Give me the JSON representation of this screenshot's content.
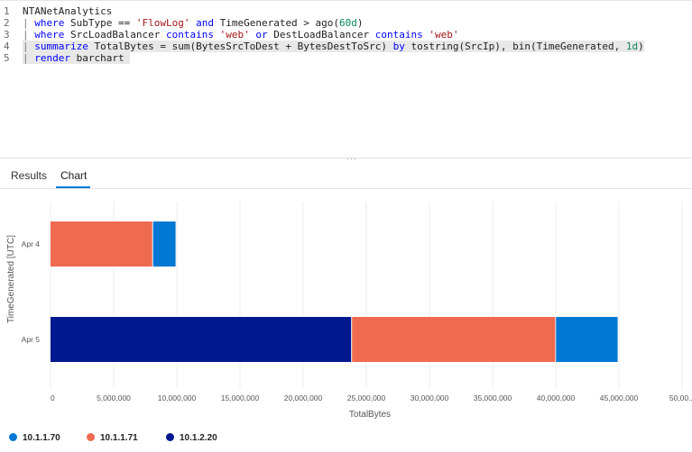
{
  "editor": {
    "lines": [
      {
        "num": "1",
        "tokens": [
          {
            "t": "NTANetAnalytics",
            "c": "plain"
          }
        ]
      },
      {
        "num": "2",
        "tokens": [
          {
            "t": "| ",
            "c": "pipe"
          },
          {
            "t": "where",
            "c": "kw"
          },
          {
            "t": " SubType == ",
            "c": "plain"
          },
          {
            "t": "'FlowLog'",
            "c": "str"
          },
          {
            "t": " ",
            "c": "plain"
          },
          {
            "t": "and",
            "c": "kw"
          },
          {
            "t": " TimeGenerated > ago(",
            "c": "plain"
          },
          {
            "t": "60d",
            "c": "num"
          },
          {
            "t": ")",
            "c": "plain"
          }
        ]
      },
      {
        "num": "3",
        "tokens": [
          {
            "t": "| ",
            "c": "pipe"
          },
          {
            "t": "where",
            "c": "kw"
          },
          {
            "t": " SrcLoadBalancer ",
            "c": "plain"
          },
          {
            "t": "contains",
            "c": "kw"
          },
          {
            "t": " ",
            "c": "plain"
          },
          {
            "t": "'web'",
            "c": "str"
          },
          {
            "t": " ",
            "c": "plain"
          },
          {
            "t": "or",
            "c": "kw"
          },
          {
            "t": " DestLoadBalancer ",
            "c": "plain"
          },
          {
            "t": "contains",
            "c": "kw"
          },
          {
            "t": " ",
            "c": "plain"
          },
          {
            "t": "'web'",
            "c": "str"
          }
        ]
      },
      {
        "num": "4",
        "highlight": true,
        "tokens": [
          {
            "t": "| ",
            "c": "pipe"
          },
          {
            "t": "summarize",
            "c": "kw"
          },
          {
            "t": " TotalBytes = sum(BytesSrcToDest + BytesDestToSrc) ",
            "c": "plain"
          },
          {
            "t": "by",
            "c": "kw"
          },
          {
            "t": " tostring(SrcIp), bin(TimeGenerated, ",
            "c": "plain"
          },
          {
            "t": "1d",
            "c": "num"
          },
          {
            "t": ")",
            "c": "plain"
          }
        ]
      },
      {
        "num": "5",
        "highlight": true,
        "tokens": [
          {
            "t": "| ",
            "c": "pipe"
          },
          {
            "t": "render",
            "c": "kw"
          },
          {
            "t": " barchart ",
            "c": "plain"
          }
        ]
      }
    ]
  },
  "tabs": {
    "results": "Results",
    "chart": "Chart"
  },
  "colors": {
    "10.1.1.70": "#0078d4",
    "10.1.1.71": "#f06a50",
    "10.1.2.20": "#00188f"
  },
  "chart_data": {
    "type": "bar",
    "orientation": "horizontal",
    "stacked": true,
    "categories": [
      "Apr 4",
      "Apr 5"
    ],
    "series": [
      {
        "name": "10.1.2.20",
        "values": [
          0,
          23800000
        ]
      },
      {
        "name": "10.1.1.71",
        "values": [
          8050000,
          16150000
        ]
      },
      {
        "name": "10.1.1.70",
        "values": [
          1850000,
          4950000
        ]
      }
    ],
    "xlabel": "TotalBytes",
    "ylabel": "TimeGenerated [UTC]",
    "xlim": [
      0,
      50000000
    ],
    "xticks": [
      "0",
      "5,000,000",
      "10,000,000",
      "15,000,000",
      "20,000,000",
      "25,000,000",
      "30,000,000",
      "35,000,000",
      "40,000,000",
      "45,000,000",
      "50,00..."
    ],
    "grid": true,
    "legend": "bottom-left",
    "legend_items": [
      "10.1.1.70",
      "10.1.1.71",
      "10.1.2.20"
    ]
  }
}
